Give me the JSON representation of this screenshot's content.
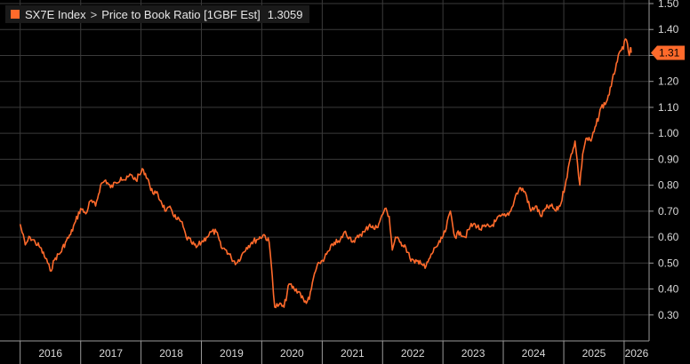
{
  "legend": {
    "ticker": "SX7E Index",
    "separator": ">",
    "series_label": "Price to Book Ratio [1GBF Est]",
    "last_value": "1.3059"
  },
  "last_value_tag": "1.31",
  "colors": {
    "series": "#ff6a2b",
    "background": "#000000",
    "grid": "#3a3a3a",
    "text": "#d8d8d8"
  },
  "chart_data": {
    "type": "line",
    "grid": true,
    "ylim": [
      0.2,
      1.5
    ],
    "y_ticks": [
      "1.50",
      "1.40",
      "1.30",
      "1.20",
      "1.10",
      "1.00",
      "0.90",
      "0.80",
      "0.70",
      "0.60",
      "0.50",
      "0.40",
      "0.30"
    ],
    "x_ticks": [
      "2016",
      "2017",
      "2018",
      "2019",
      "2020",
      "2021",
      "2022",
      "2023",
      "2024",
      "2025",
      "2026"
    ],
    "series": [
      {
        "color": "#ff6a2b",
        "points": [
          [
            "2016-01-01",
            0.65
          ],
          [
            "2016-02-01",
            0.57
          ],
          [
            "2016-03-01",
            0.6
          ],
          [
            "2016-04-01",
            0.58
          ],
          [
            "2016-05-01",
            0.56
          ],
          [
            "2016-06-15",
            0.5
          ],
          [
            "2016-07-01",
            0.47
          ],
          [
            "2016-08-01",
            0.52
          ],
          [
            "2016-09-01",
            0.54
          ],
          [
            "2016-10-01",
            0.58
          ],
          [
            "2016-11-01",
            0.61
          ],
          [
            "2016-12-01",
            0.66
          ],
          [
            "2017-01-01",
            0.71
          ],
          [
            "2017-02-01",
            0.69
          ],
          [
            "2017-03-01",
            0.74
          ],
          [
            "2017-04-01",
            0.72
          ],
          [
            "2017-05-01",
            0.8
          ],
          [
            "2017-06-01",
            0.82
          ],
          [
            "2017-07-01",
            0.79
          ],
          [
            "2017-08-01",
            0.81
          ],
          [
            "2017-09-01",
            0.83
          ],
          [
            "2017-10-01",
            0.82
          ],
          [
            "2017-11-01",
            0.84
          ],
          [
            "2017-12-01",
            0.82
          ],
          [
            "2018-01-15",
            0.86
          ],
          [
            "2018-02-15",
            0.82
          ],
          [
            "2018-03-01",
            0.78
          ],
          [
            "2018-04-01",
            0.77
          ],
          [
            "2018-05-01",
            0.74
          ],
          [
            "2018-06-01",
            0.7
          ],
          [
            "2018-07-01",
            0.71
          ],
          [
            "2018-08-01",
            0.67
          ],
          [
            "2018-09-01",
            0.66
          ],
          [
            "2018-10-01",
            0.6
          ],
          [
            "2018-11-01",
            0.58
          ],
          [
            "2018-12-01",
            0.56
          ],
          [
            "2019-01-01",
            0.58
          ],
          [
            "2019-02-01",
            0.6
          ],
          [
            "2019-03-01",
            0.62
          ],
          [
            "2019-04-01",
            0.62
          ],
          [
            "2019-05-01",
            0.56
          ],
          [
            "2019-06-01",
            0.55
          ],
          [
            "2019-07-01",
            0.52
          ],
          [
            "2019-08-01",
            0.5
          ],
          [
            "2019-09-01",
            0.53
          ],
          [
            "2019-10-01",
            0.56
          ],
          [
            "2019-11-01",
            0.58
          ],
          [
            "2019-12-01",
            0.59
          ],
          [
            "2020-01-15",
            0.61
          ],
          [
            "2020-02-15",
            0.58
          ],
          [
            "2020-03-05",
            0.45
          ],
          [
            "2020-03-20",
            0.33
          ],
          [
            "2020-04-15",
            0.34
          ],
          [
            "2020-05-15",
            0.33
          ],
          [
            "2020-06-15",
            0.42
          ],
          [
            "2020-07-15",
            0.4
          ],
          [
            "2020-08-15",
            0.39
          ],
          [
            "2020-09-15",
            0.35
          ],
          [
            "2020-10-15",
            0.36
          ],
          [
            "2020-11-15",
            0.46
          ],
          [
            "2020-12-15",
            0.5
          ],
          [
            "2021-01-15",
            0.52
          ],
          [
            "2021-02-15",
            0.55
          ],
          [
            "2021-03-15",
            0.58
          ],
          [
            "2021-04-15",
            0.58
          ],
          [
            "2021-05-15",
            0.62
          ],
          [
            "2021-06-15",
            0.6
          ],
          [
            "2021-07-15",
            0.58
          ],
          [
            "2021-08-15",
            0.61
          ],
          [
            "2021-09-15",
            0.62
          ],
          [
            "2021-10-15",
            0.65
          ],
          [
            "2021-11-15",
            0.63
          ],
          [
            "2021-12-15",
            0.66
          ],
          [
            "2022-01-15",
            0.71
          ],
          [
            "2022-02-10",
            0.68
          ],
          [
            "2022-03-01",
            0.55
          ],
          [
            "2022-03-20",
            0.6
          ],
          [
            "2022-04-15",
            0.58
          ],
          [
            "2022-05-15",
            0.57
          ],
          [
            "2022-06-15",
            0.52
          ],
          [
            "2022-07-15",
            0.5
          ],
          [
            "2022-08-15",
            0.51
          ],
          [
            "2022-09-15",
            0.48
          ],
          [
            "2022-10-15",
            0.52
          ],
          [
            "2022-11-15",
            0.56
          ],
          [
            "2022-12-15",
            0.58
          ],
          [
            "2023-01-15",
            0.62
          ],
          [
            "2023-02-15",
            0.7
          ],
          [
            "2023-03-15",
            0.6
          ],
          [
            "2023-04-15",
            0.62
          ],
          [
            "2023-05-15",
            0.6
          ],
          [
            "2023-06-15",
            0.64
          ],
          [
            "2023-07-15",
            0.65
          ],
          [
            "2023-08-15",
            0.63
          ],
          [
            "2023-09-15",
            0.64
          ],
          [
            "2023-10-15",
            0.64
          ],
          [
            "2023-11-15",
            0.66
          ],
          [
            "2023-12-15",
            0.68
          ],
          [
            "2024-01-15",
            0.68
          ],
          [
            "2024-02-15",
            0.7
          ],
          [
            "2024-03-15",
            0.76
          ],
          [
            "2024-04-15",
            0.79
          ],
          [
            "2024-05-15",
            0.77
          ],
          [
            "2024-06-15",
            0.7
          ],
          [
            "2024-07-15",
            0.72
          ],
          [
            "2024-08-15",
            0.68
          ],
          [
            "2024-09-15",
            0.71
          ],
          [
            "2024-10-15",
            0.72
          ],
          [
            "2024-11-15",
            0.7
          ],
          [
            "2024-12-15",
            0.73
          ],
          [
            "2025-01-15",
            0.82
          ],
          [
            "2025-02-15",
            0.92
          ],
          [
            "2025-03-10",
            0.97
          ],
          [
            "2025-04-08",
            0.8
          ],
          [
            "2025-04-25",
            0.92
          ],
          [
            "2025-05-15",
            0.98
          ],
          [
            "2025-06-15",
            0.97
          ],
          [
            "2025-07-15",
            1.03
          ],
          [
            "2025-08-15",
            1.1
          ],
          [
            "2025-09-15",
            1.12
          ],
          [
            "2025-10-15",
            1.18
          ],
          [
            "2025-11-15",
            1.27
          ],
          [
            "2025-12-15",
            1.32
          ],
          [
            "2026-01-15",
            1.36
          ],
          [
            "2026-02-01",
            1.3
          ],
          [
            "2026-02-08",
            1.33
          ],
          [
            "2026-02-13",
            1.31
          ]
        ]
      }
    ]
  }
}
